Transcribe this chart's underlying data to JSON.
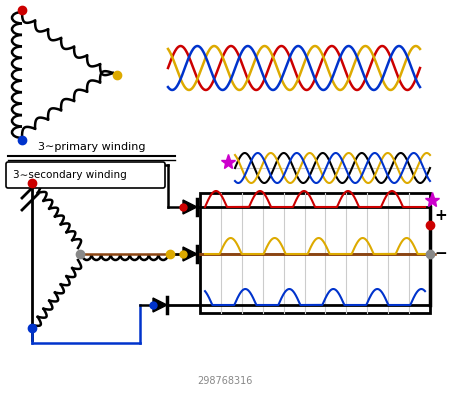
{
  "bg_color": "#ffffff",
  "red_color": "#cc0000",
  "blue_color": "#0033cc",
  "orange_color": "#ddaa00",
  "black_color": "#000000",
  "gray_color": "#888888",
  "brown_color": "#8B4513",
  "magenta_color": "#cc00cc",
  "lgray_color": "#cccccc",
  "title_text": "3∼primary winding",
  "secondary_text": "3∼secondary winding",
  "watermark": "298768316",
  "figsize": [
    4.5,
    3.94
  ],
  "dpi": 100
}
